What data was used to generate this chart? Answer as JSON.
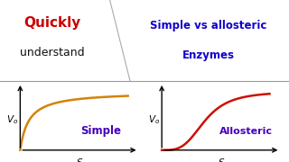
{
  "background_color": "#ffffff",
  "title_quickly": "Quickly",
  "title_understand": "understand",
  "title_right_line1": "Simple vs allosteric",
  "title_right_line2": "Enzymes",
  "label_simple": "Simple",
  "label_allosteric": "Allosteric",
  "label_vo": "V",
  "label_vo_sub": "o",
  "label_s": "S",
  "curve_color_simple": "#d4820a",
  "curve_color_allosteric": "#cc1100",
  "text_color_purple": "#4400bb",
  "text_color_blue": "#1100cc",
  "quickly_color": "#cc0000",
  "understand_color": "#111111",
  "top_bg": "#e8e8f0",
  "divider_gray": "#aaaaaa"
}
